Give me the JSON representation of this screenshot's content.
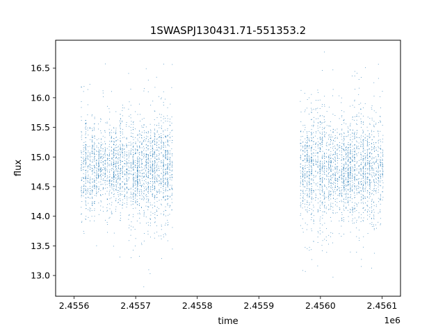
{
  "chart_data": {
    "type": "scatter",
    "title": "1SWASPJ130431.71-551353.2",
    "xlabel": "time",
    "ylabel": "flux",
    "x_offset_label": "1e6",
    "x_tick_labels": [
      "2.4556",
      "2.4557",
      "2.4558",
      "2.4559",
      "2.4560",
      "2.4561"
    ],
    "x_ticks": [
      2455600,
      2455700,
      2455800,
      2455900,
      2456000,
      2456100
    ],
    "y_tick_labels": [
      "13.0",
      "13.5",
      "14.0",
      "14.5",
      "15.0",
      "15.5",
      "16.0",
      "16.5"
    ],
    "y_ticks": [
      13.0,
      13.5,
      14.0,
      14.5,
      15.0,
      15.5,
      16.0,
      16.5
    ],
    "xlim": [
      2455570,
      2456130
    ],
    "ylim": [
      12.65,
      16.97
    ],
    "grid": false,
    "marker_color": "#1f77b4",
    "segments": [
      {
        "x_start": 2455612,
        "x_end": 2455760,
        "center": 14.8,
        "spread": 0.55
      },
      {
        "x_start": 2455968,
        "x_end": 2456102,
        "center": 14.8,
        "spread": 0.6
      }
    ],
    "nights_spacing": 3.5,
    "points_per_night": 65,
    "seed": 7
  }
}
